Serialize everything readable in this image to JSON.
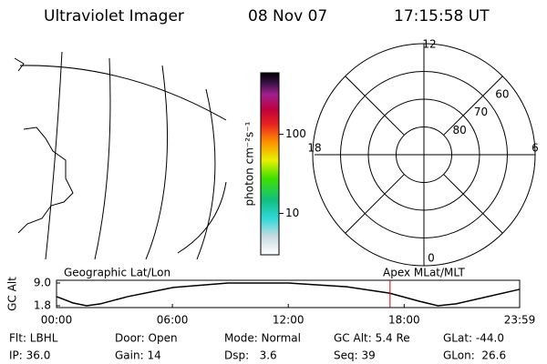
{
  "header": {
    "title": "Ultraviolet Imager",
    "date": "08 Nov 07",
    "time": "17:15:58 UT"
  },
  "colorbar": {
    "label": "photon cm⁻²s⁻¹",
    "scale": "log",
    "lim": [
      3,
      600
    ],
    "ticks": [
      10,
      100
    ]
  },
  "polar": {
    "lat_lim": [
      50,
      90
    ],
    "rings": [
      50,
      60,
      70,
      80
    ],
    "lat_ticks": [
      60,
      70,
      80
    ],
    "mlt_ticks": [
      0,
      6,
      12,
      18
    ]
  },
  "chart_data": {
    "type": "line",
    "ylabel": "GC Alt",
    "left_title": "Geographic Lat/Lon",
    "right_title": "Apex MLat/MLT",
    "x": [
      0,
      0.85,
      1.56,
      2.27,
      3.69,
      6.05,
      8.88,
      12,
      15.02,
      17.24,
      18.8,
      19.75,
      20.69,
      22.11,
      23.98
    ],
    "series": [
      {
        "name": "GC Alt",
        "color": "#000000",
        "values": [
          4.7,
          2.7,
          1.8,
          2.4,
          4.7,
          7.6,
          9.0,
          9.0,
          7.8,
          5.8,
          3.2,
          1.8,
          2.4,
          4.4,
          7.0
        ]
      }
    ],
    "xlim": [
      0,
      23.98
    ],
    "xticks": [
      {
        "value": 0,
        "label": "00:00"
      },
      {
        "value": 6,
        "label": "06:00"
      },
      {
        "value": 12,
        "label": "12:00"
      },
      {
        "value": 18,
        "label": "18:00"
      },
      {
        "value": 23.98,
        "label": "23:59"
      }
    ],
    "ylim": [
      1.8,
      9.0
    ],
    "yticks": [
      {
        "value": 1.8,
        "label": "1.8"
      },
      {
        "value": 9.0,
        "label": "9.0"
      }
    ],
    "marker_x": 17.27,
    "marker_color": "#e00000"
  },
  "footer": {
    "rows": [
      [
        "Flt: LBHL",
        "Door: Open",
        "Mode: Normal",
        "GC Alt: 5.4 Re",
        "GLat: -44.0"
      ],
      [
        "IP: 36.0",
        "Gain: 14",
        "Dsp:   3.6",
        "Seq: 39",
        "GLon:  26.6"
      ]
    ]
  }
}
